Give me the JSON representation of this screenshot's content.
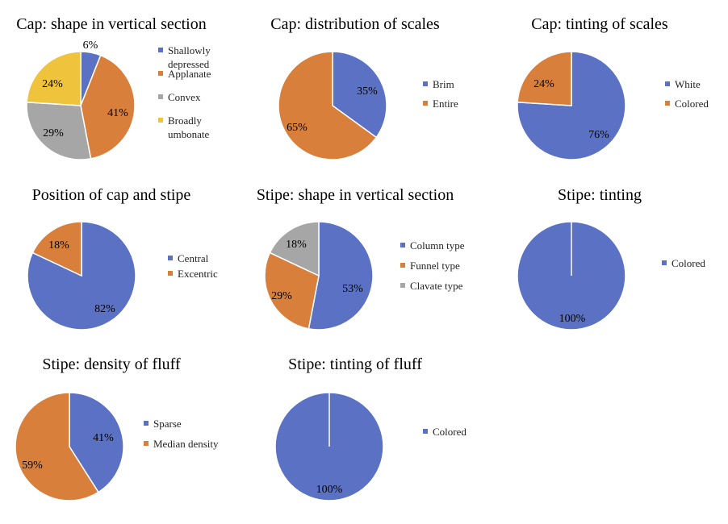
{
  "colors": {
    "blue": "#5B72C4",
    "orange": "#D97F3C",
    "gray": "#A6A6A6",
    "yellow": "#F0C33C"
  },
  "chart_data": [
    {
      "type": "pie",
      "title": "Cap: shape in vertical section",
      "slices": [
        {
          "label": [
            "Shallowly",
            "depressed"
          ],
          "value": 6,
          "text": "6%",
          "color": "#5B72C4"
        },
        {
          "label": [
            "Applanate"
          ],
          "value": 41,
          "text": "41%",
          "color": "#D97F3C"
        },
        {
          "label": [
            "Convex"
          ],
          "value": 29,
          "text": "29%",
          "color": "#A6A6A6"
        },
        {
          "label": [
            "Broadly",
            "umbonate"
          ],
          "value": 24,
          "text": "24%",
          "color": "#F0C33C"
        }
      ]
    },
    {
      "type": "pie",
      "title": "Cap: distribution of scales",
      "slices": [
        {
          "label": [
            "Brim"
          ],
          "value": 35,
          "text": "35%",
          "color": "#5B72C4"
        },
        {
          "label": [
            "Entire"
          ],
          "value": 65,
          "text": "65%",
          "color": "#D97F3C"
        }
      ]
    },
    {
      "type": "pie",
      "title": "Cap: tinting of scales",
      "slices": [
        {
          "label": [
            "White"
          ],
          "value": 76,
          "text": "76%",
          "color": "#5B72C4"
        },
        {
          "label": [
            "Colored"
          ],
          "value": 24,
          "text": "24%",
          "color": "#D97F3C"
        }
      ]
    },
    {
      "type": "pie",
      "title": "Position of cap and stipe",
      "slices": [
        {
          "label": [
            "Central"
          ],
          "value": 82,
          "text": "82%",
          "color": "#5B72C4"
        },
        {
          "label": [
            "Excentric"
          ],
          "value": 18,
          "text": "18%",
          "color": "#D97F3C"
        }
      ]
    },
    {
      "type": "pie",
      "title": "Stipe: shape in vertical section",
      "slices": [
        {
          "label": [
            "Column type"
          ],
          "value": 53,
          "text": "53%",
          "color": "#5B72C4"
        },
        {
          "label": [
            "Funnel type"
          ],
          "value": 29,
          "text": "29%",
          "color": "#D97F3C"
        },
        {
          "label": [
            "Clavate type"
          ],
          "value": 18,
          "text": "18%",
          "color": "#A6A6A6"
        }
      ]
    },
    {
      "type": "pie",
      "title": "Stipe: tinting",
      "slices": [
        {
          "label": [
            "Colored"
          ],
          "value": 100,
          "text": "100%",
          "color": "#5B72C4"
        }
      ]
    },
    {
      "type": "pie",
      "title": "Stipe: density of fluff",
      "slices": [
        {
          "label": [
            "Sparse"
          ],
          "value": 41,
          "text": "41%",
          "color": "#5B72C4"
        },
        {
          "label": [
            "Median density"
          ],
          "value": 59,
          "text": "59%",
          "color": "#D97F3C"
        }
      ]
    },
    {
      "type": "pie",
      "title": "Stipe: tinting of fluff",
      "slices": [
        {
          "label": [
            "Colored"
          ],
          "value": 100,
          "text": "100%",
          "color": "#5B72C4"
        }
      ]
    }
  ]
}
